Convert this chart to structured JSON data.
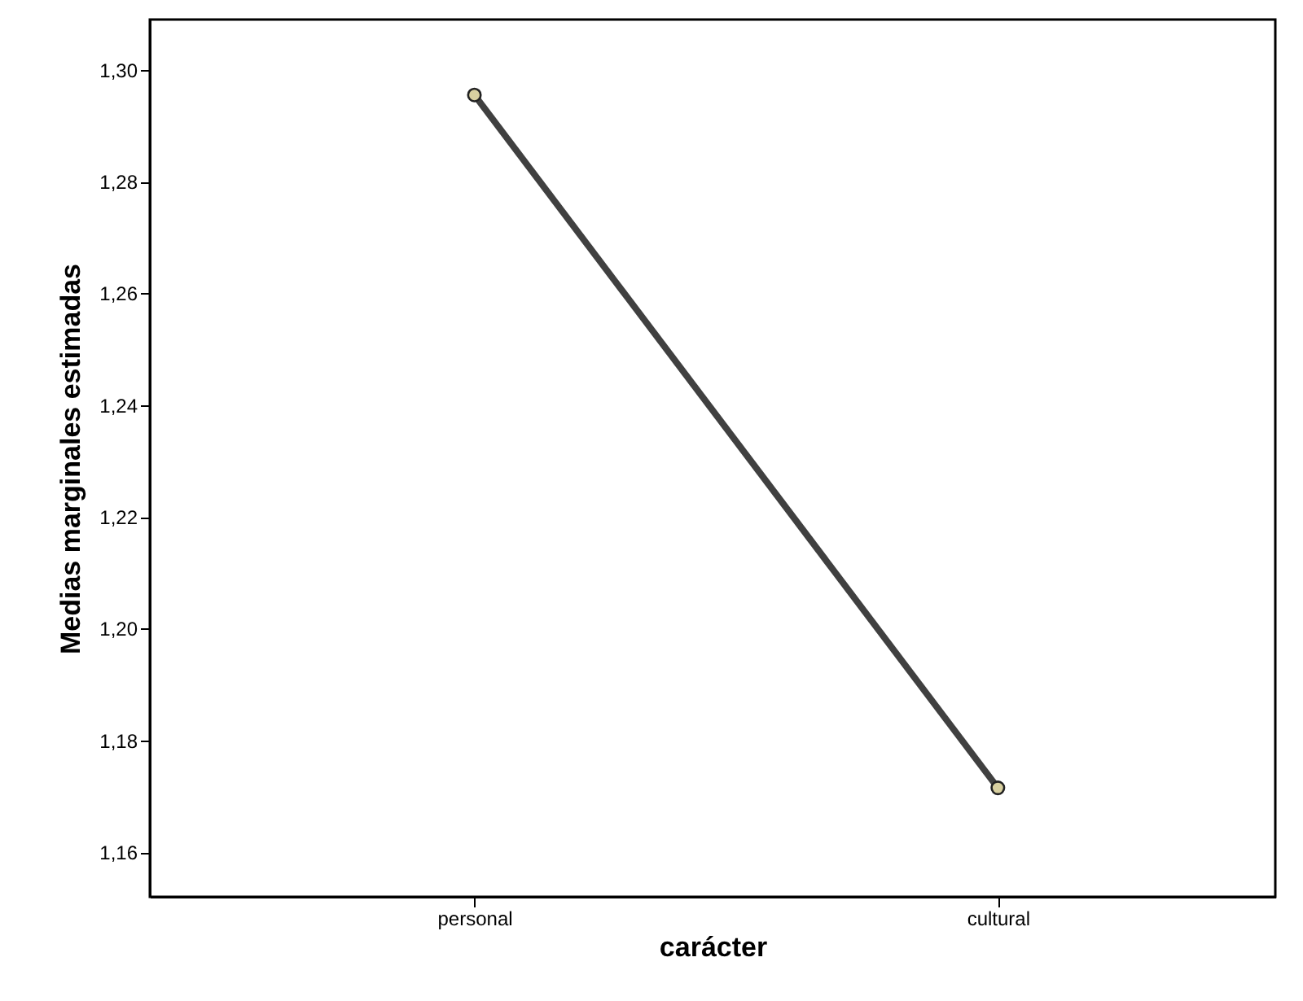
{
  "chart_data": {
    "type": "line",
    "xlabel": "carácter",
    "ylabel": "Medias marginales estimadas",
    "categories": [
      "personal",
      "cultural"
    ],
    "series": [
      {
        "color": "#404040",
        "values": [
          1.2955,
          1.1715
        ]
      }
    ],
    "ylim": [
      1.152,
      1.309
    ],
    "yticks": [
      {
        "value": 1.16,
        "label": "1,16"
      },
      {
        "value": 1.18,
        "label": "1,18"
      },
      {
        "value": 1.2,
        "label": "1,20"
      },
      {
        "value": 1.22,
        "label": "1,22"
      },
      {
        "value": 1.24,
        "label": "1,24"
      },
      {
        "value": 1.26,
        "label": "1,26"
      },
      {
        "value": 1.28,
        "label": "1,28"
      },
      {
        "value": 1.3,
        "label": "1,30"
      }
    ],
    "marker": "circle",
    "grid": false
  }
}
